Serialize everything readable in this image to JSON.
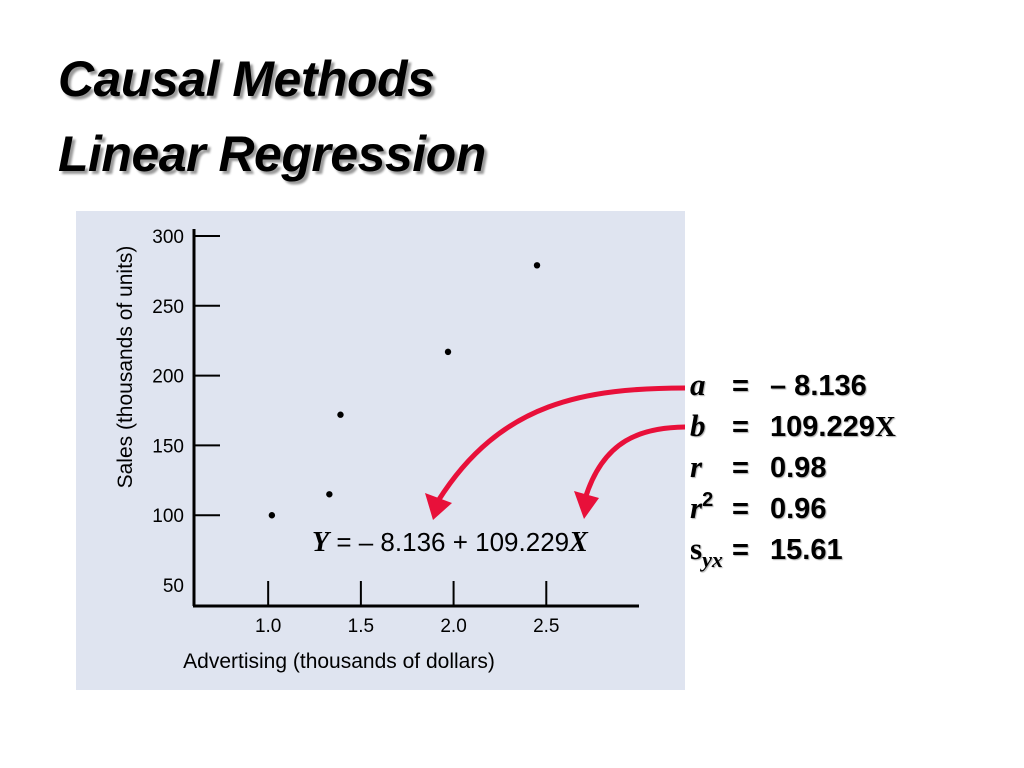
{
  "slide": {
    "title_line1": "Causal Methods",
    "title_line2": "Linear Regression"
  },
  "stats": [
    {
      "symbol": "a",
      "sup": "",
      "sub": "",
      "eq": "=",
      "value": "– 8.136",
      "value_suffix": ""
    },
    {
      "symbol": "b",
      "sup": "",
      "sub": "",
      "eq": "=",
      "value": "109.229",
      "value_suffix": "X"
    },
    {
      "symbol": "r",
      "sup": "",
      "sub": "",
      "eq": "=",
      "value": "0.98",
      "value_suffix": ""
    },
    {
      "symbol": "r",
      "sup": "2",
      "sub": "",
      "eq": "=",
      "value": "0.96",
      "value_suffix": ""
    },
    {
      "symbol": "s",
      "sup": "",
      "sub": "yx",
      "eq": "=",
      "value": "15.61",
      "value_suffix": ""
    }
  ],
  "equation": {
    "y_var": "Y",
    "middle": "= – 8.136 + 109.229",
    "x_var": "X"
  },
  "chart_data": {
    "type": "scatter",
    "title": "",
    "xlabel": "Advertising (thousands of dollars)",
    "ylabel": "Sales (thousands of units)",
    "x_ticks": [
      "1.0",
      "1.5",
      "2.0",
      "2.5"
    ],
    "y_ticks": [
      "300",
      "250",
      "200",
      "150",
      "100",
      "50"
    ],
    "xlim": [
      0.6,
      3.0
    ],
    "ylim": [
      35,
      305
    ],
    "grid": false,
    "points": [
      {
        "x": 1.02,
        "y": 100
      },
      {
        "x": 1.33,
        "y": 115
      },
      {
        "x": 1.39,
        "y": 172
      },
      {
        "x": 1.97,
        "y": 217
      },
      {
        "x": 2.45,
        "y": 279
      }
    ],
    "colors": {
      "panel": "#dfe4f0",
      "arrow": "#e8103a",
      "points": "#000000"
    }
  }
}
